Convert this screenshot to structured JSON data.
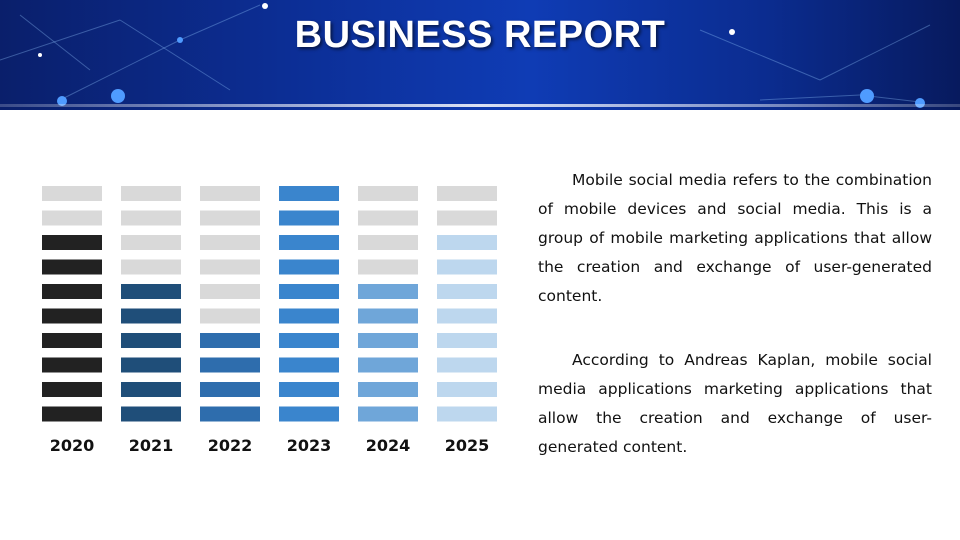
{
  "header": {
    "title": "BUSINESS REPORT"
  },
  "colors": {
    "banner": "#0c2e95",
    "empty": "#d9d9d9",
    "y2020": "#222222",
    "y2021": "#1f4e79",
    "y2022": "#2e6dad",
    "y2023": "#3a85cd",
    "y2024": "#6fa6d9",
    "y2025": "#bdd7ee"
  },
  "chart_data": {
    "type": "bar",
    "style": "stacked-segment columns (10 segments each)",
    "categories": [
      "2020",
      "2021",
      "2022",
      "2023",
      "2024",
      "2025"
    ],
    "values": [
      8,
      6,
      4,
      10,
      6,
      8
    ],
    "max_segments": 10,
    "title": "",
    "xlabel": "",
    "ylabel": ""
  },
  "body": {
    "paragraph1": "Mobile social media refers to the combination of mobile devices and social media. This is a group of mobile marketing applications that allow the creation and exchange of user-generated content.",
    "paragraph2": "According to Andreas Kaplan, mobile social media applications marketing applications that allow the creation and exchange of user-generated content."
  }
}
